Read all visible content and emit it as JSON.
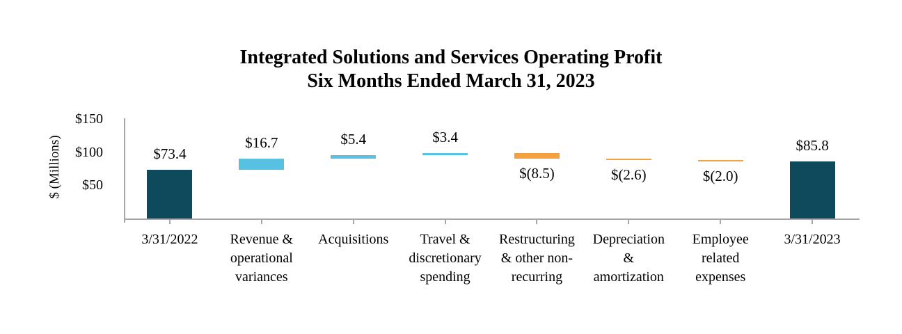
{
  "chart_data": {
    "type": "waterfall",
    "title_line1": "Integrated Solutions and Services Operating Profit",
    "title_line2": "Six Months Ended March 31, 2023",
    "title": "Integrated Solutions and Services Operating Profit\nSix Months Ended March 31, 2023",
    "ylabel": "$ (Millions)",
    "y_axis": {
      "range": [
        0,
        150
      ],
      "ticks": [
        {
          "label": "$150",
          "value": 150
        },
        {
          "label": "$100",
          "value": 100
        },
        {
          "label": "$50",
          "value": 50
        }
      ]
    },
    "legend": "none",
    "grid": "off",
    "bars": [
      {
        "category": "3/31/2022",
        "label_lines": "3/31/2022",
        "value": 73.4,
        "display": "$73.4",
        "kind": "total"
      },
      {
        "category": "Revenue & operational variances",
        "label_lines": "Revenue &\noperational\nvariances",
        "value": 16.7,
        "display": "$16.7",
        "kind": "increase"
      },
      {
        "category": "Acquisitions",
        "label_lines": "Acquisitions",
        "value": 5.4,
        "display": "$5.4",
        "kind": "increase"
      },
      {
        "category": "Travel & discretionary spending",
        "label_lines": "Travel &\ndiscretionary\nspending",
        "value": 3.4,
        "display": "$3.4",
        "kind": "increase"
      },
      {
        "category": "Restructuring & other non-recurring",
        "label_lines": "Restructuring\n& other non-\nrecurring",
        "value": -8.5,
        "display": "$(8.5)",
        "kind": "decrease"
      },
      {
        "category": "Depreciation & amortization",
        "label_lines": "Depreciation\n&\namortization",
        "value": -2.6,
        "display": "$(2.6)",
        "kind": "decrease"
      },
      {
        "category": "Employee related expenses",
        "label_lines": "Employee\nrelated\nexpenses",
        "value": -2.0,
        "display": "$(2.0)",
        "kind": "decrease"
      },
      {
        "category": "3/31/2023",
        "label_lines": "3/31/2023",
        "value": 85.8,
        "display": "$85.8",
        "kind": "total"
      }
    ],
    "colors": {
      "total": "#0d4a5c",
      "increase": "#58c1e1",
      "decrease": "#f3a140",
      "axis": "#a6a6a6",
      "text": "#000000"
    }
  }
}
